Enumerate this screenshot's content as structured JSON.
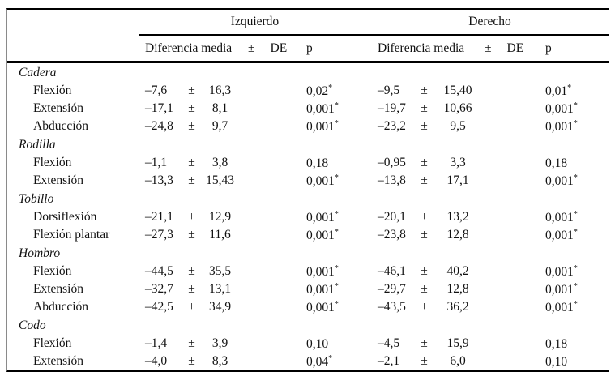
{
  "table": {
    "header": {
      "left_group": "Izquierdo",
      "right_group": "Derecho",
      "mean_label": "Diferencia media",
      "pm_label": "±",
      "de_label": "DE",
      "p_label": "p"
    },
    "sig_marker": "*",
    "rows": [
      {
        "type": "group",
        "label": "Cadera"
      },
      {
        "type": "data",
        "label": "Flexión",
        "left": {
          "mean": "–7,6",
          "de": "16,3",
          "p": "0,02",
          "sig": true
        },
        "right": {
          "mean": "–9,5",
          "de": "15,40",
          "p": "0,01",
          "sig": true
        }
      },
      {
        "type": "data",
        "label": "Extensión",
        "left": {
          "mean": "–17,1",
          "de": "8,1",
          "p": "0,001",
          "sig": true
        },
        "right": {
          "mean": "–19,7",
          "de": "10,66",
          "p": "0,001",
          "sig": true
        }
      },
      {
        "type": "data",
        "label": "Abducción",
        "left": {
          "mean": "–24,8",
          "de": "9,7",
          "p": "0,001",
          "sig": true
        },
        "right": {
          "mean": "–23,2",
          "de": "9,5",
          "p": "0,001",
          "sig": true
        }
      },
      {
        "type": "group",
        "label": "Rodilla"
      },
      {
        "type": "data",
        "label": "Flexión",
        "left": {
          "mean": "–1,1",
          "de": "3,8",
          "p": "0,18",
          "sig": false
        },
        "right": {
          "mean": "–0,95",
          "de": "3,3",
          "p": "0,18",
          "sig": false
        }
      },
      {
        "type": "data",
        "label": "Extensión",
        "left": {
          "mean": "–13,3",
          "de": "15,43",
          "p": "0,001",
          "sig": true
        },
        "right": {
          "mean": "–13,8",
          "de": "17,1",
          "p": "0,001",
          "sig": true
        }
      },
      {
        "type": "group",
        "label": "Tobillo"
      },
      {
        "type": "data",
        "label": "Dorsiflexión",
        "left": {
          "mean": "–21,1",
          "de": "12,9",
          "p": "0,001",
          "sig": true
        },
        "right": {
          "mean": "–20,1",
          "de": "13,2",
          "p": "0,001",
          "sig": true
        }
      },
      {
        "type": "data",
        "label": "Flexión plantar",
        "left": {
          "mean": "–27,3",
          "de": "11,6",
          "p": "0,001",
          "sig": true
        },
        "right": {
          "mean": "–23,8",
          "de": "12,8",
          "p": "0,001",
          "sig": true
        }
      },
      {
        "type": "group",
        "label": "Hombro"
      },
      {
        "type": "data",
        "label": "Flexión",
        "left": {
          "mean": "–44,5",
          "de": "35,5",
          "p": "0,001",
          "sig": true
        },
        "right": {
          "mean": "–46,1",
          "de": "40,2",
          "p": "0,001",
          "sig": true
        }
      },
      {
        "type": "data",
        "label": "Extensión",
        "left": {
          "mean": "–32,7",
          "de": "13,1",
          "p": "0,001",
          "sig": true
        },
        "right": {
          "mean": "–29,7",
          "de": "12,8",
          "p": "0,001",
          "sig": true
        }
      },
      {
        "type": "data",
        "label": "Abducción",
        "left": {
          "mean": "–42,5",
          "de": "34,9",
          "p": "0,001",
          "sig": true
        },
        "right": {
          "mean": "–43,5",
          "de": "36,2",
          "p": "0,001",
          "sig": true
        }
      },
      {
        "type": "group",
        "label": "Codo"
      },
      {
        "type": "data",
        "label": "Flexión",
        "left": {
          "mean": "–1,4",
          "de": "3,9",
          "p": "0,10",
          "sig": false
        },
        "right": {
          "mean": "–4,5",
          "de": "15,9",
          "p": "0,18",
          "sig": false
        }
      },
      {
        "type": "data",
        "label": "Extensión",
        "left": {
          "mean": "–4,0",
          "de": "8,3",
          "p": "0,04",
          "sig": true
        },
        "right": {
          "mean": "–2,1",
          "de": "6,0",
          "p": "0,10",
          "sig": false
        }
      }
    ]
  }
}
